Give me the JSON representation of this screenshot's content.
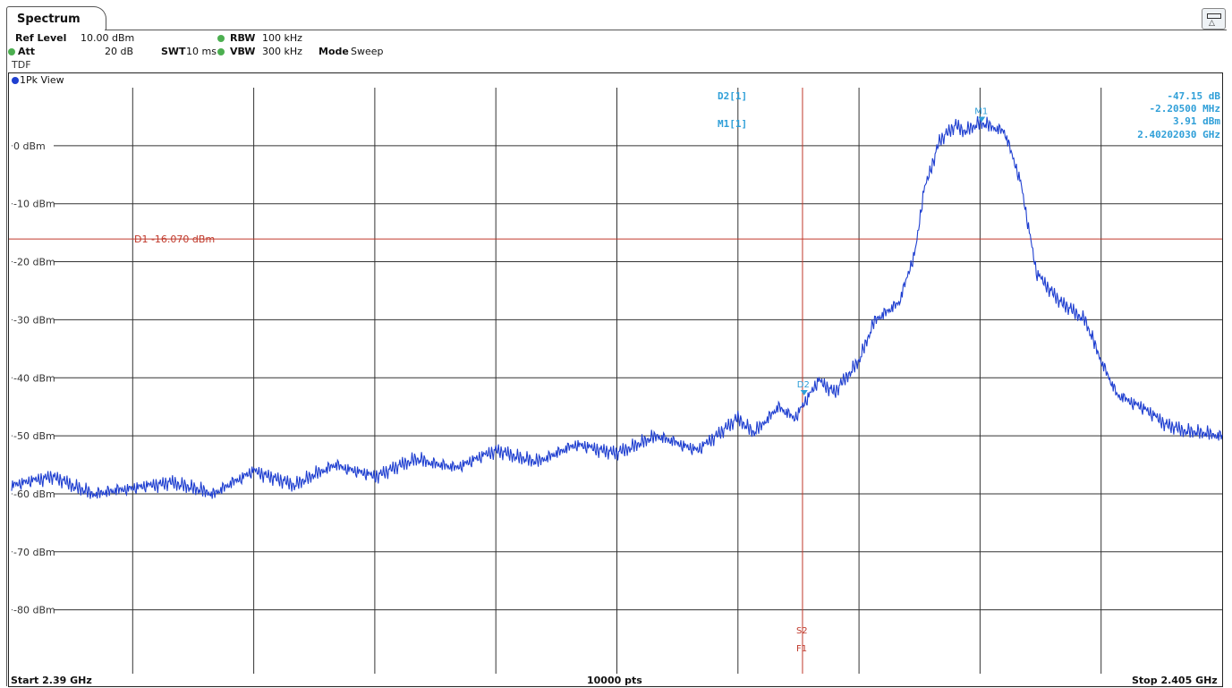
{
  "tab": {
    "label": "Spectrum"
  },
  "settings": {
    "ref_level_label": "Ref Level",
    "ref_level_value": "10.00 dBm",
    "att_label": "Att",
    "att_value": "20 dB",
    "swt_label": "SWT",
    "swt_value": "10 ms",
    "rbw_label": "RBW",
    "rbw_value": "100 kHz",
    "vbw_label": "VBW",
    "vbw_value": "300 kHz",
    "mode_label": "Mode",
    "mode_value": "Sweep",
    "tdf": "TDF"
  },
  "view_label": "1Pk View",
  "marker_table": {
    "d2_label": "D2[1]",
    "d2_level": "-47.15 dB",
    "d2_freq": "-2.20500 MHz",
    "m1_label": "M1[1]",
    "m1_level": "3.91 dBm",
    "m1_freq": "2.40202030 GHz"
  },
  "footer": {
    "start": "Start 2.39 GHz",
    "points": "10000 pts",
    "stop": "Stop 2.405 GHz"
  },
  "colors": {
    "trace": "#1f3fd0",
    "marker": "#2f9fd8",
    "line": "#c0392b",
    "grid": "#333333"
  },
  "chart_data": {
    "type": "line",
    "xlabel": "",
    "ylabel": "",
    "xlim": [
      2.39,
      2.405
    ],
    "ylim": [
      -91,
      10
    ],
    "y_ticks": [
      {
        "value": 0,
        "label": "0 dBm"
      },
      {
        "value": -10,
        "label": "-10 dBm"
      },
      {
        "value": -20,
        "label": "-20 dBm"
      },
      {
        "value": -30,
        "label": "-30 dBm"
      },
      {
        "value": -40,
        "label": "-40 dBm"
      },
      {
        "value": -50,
        "label": "-50 dBm"
      },
      {
        "value": -60,
        "label": "-60 dBm"
      },
      {
        "value": -70,
        "label": "-70 dBm"
      },
      {
        "value": -80,
        "label": "-80 dBm"
      }
    ],
    "x_grid": [
      2.3915,
      2.393,
      2.3945,
      2.396,
      2.3975,
      2.399,
      2.4005,
      2.402,
      2.4035
    ],
    "grid": true,
    "series": [
      {
        "x": [
          2.39,
          2.3905,
          2.391,
          2.3915,
          2.392,
          2.3925,
          2.393,
          2.3935,
          2.394,
          2.3945,
          2.395,
          2.3955,
          2.396,
          2.3965,
          2.397,
          2.3975,
          2.398,
          2.3985,
          2.399,
          2.3992,
          2.3995,
          2.3997,
          2.4,
          2.4002,
          2.4005,
          2.4007,
          2.401,
          2.4012,
          2.4013,
          2.4015,
          2.4017,
          2.4018,
          2.402,
          2.4022,
          2.4023,
          2.4025,
          2.4027,
          2.403,
          2.4033,
          2.4035,
          2.4037,
          2.404,
          2.4043,
          2.4045,
          2.405
        ],
        "y": [
          -58.5,
          -57,
          -60,
          -59,
          -58,
          -60,
          -56,
          -58.5,
          -55,
          -57,
          -54,
          -55.5,
          -52.5,
          -54.5,
          -51.5,
          -53,
          -50,
          -52.5,
          -47,
          -49.5,
          -45,
          -47,
          -40.5,
          -42.5,
          -37,
          -30,
          -27,
          -18,
          -8,
          1,
          3.5,
          2.5,
          3.9,
          3,
          2.5,
          -6,
          -22,
          -27,
          -30,
          -37,
          -43,
          -45,
          -48,
          -49,
          -50
        ]
      }
    ],
    "display_line": {
      "label": "D1",
      "value": "-16.070 dBm",
      "level": -16.07
    },
    "vertical_line": {
      "x": 2.3998,
      "labels": [
        "S2",
        "F1"
      ]
    },
    "markers": [
      {
        "label": "M1",
        "x": 2.40202,
        "y": 3.91
      },
      {
        "label": "D2",
        "x": 2.39982,
        "y": -43.2
      }
    ]
  }
}
